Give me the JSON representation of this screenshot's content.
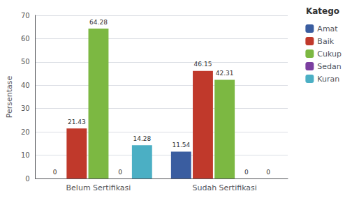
{
  "chart_data": {
    "type": "bar",
    "categories": [
      "Belum Sertifikasi",
      "Sudah Sertifikasi"
    ],
    "series": [
      {
        "name": "Amat",
        "color": "#3a5da0",
        "values": [
          0,
          11.54
        ]
      },
      {
        "name": "Baik",
        "color": "#c0392b",
        "values": [
          21.43,
          46.15
        ]
      },
      {
        "name": "Cukup",
        "color": "#7cb842",
        "values": [
          64.28,
          42.31
        ]
      },
      {
        "name": "Sedan",
        "color": "#7b3fa0",
        "values": [
          0,
          0
        ]
      },
      {
        "name": "Kuran",
        "color": "#4bafc4",
        "values": [
          14.28,
          0
        ]
      }
    ],
    "ylabel": "Persentase",
    "ylim": [
      0,
      70
    ],
    "yticks": [
      0,
      10,
      20,
      30,
      40,
      50,
      60,
      70
    ],
    "grid": true,
    "legend": "upper right",
    "legend_title": "Katego",
    "data_labels": true
  }
}
